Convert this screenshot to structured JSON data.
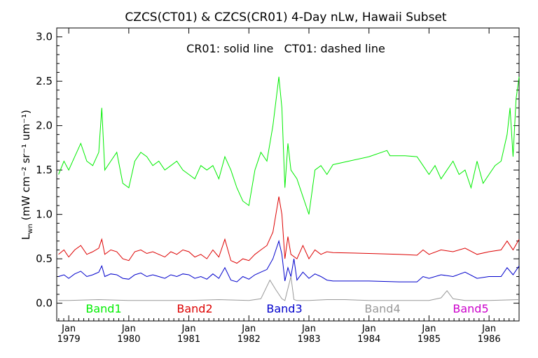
{
  "chart_data": {
    "type": "line",
    "title": "CZCS(CT01) & CZCS(CR01) 4-Day nLw, Hawaii Subset",
    "annotation": "CR01: solid line   CT01: dashed line",
    "ylabel_main": "L",
    "ylabel_sub": "wn",
    "ylabel_units": "(mW cm⁻² sr⁻¹ um⁻¹)",
    "xlabel": "",
    "xlim": [
      1978.8,
      1986.5
    ],
    "ylim": [
      -0.2,
      3.1
    ],
    "grid": false,
    "legend_placement": "bottom, inside plot",
    "x_ticks": [
      {
        "month": "Jan",
        "year": "1979",
        "x": 1979.0
      },
      {
        "month": "Jan",
        "year": "1980",
        "x": 1980.0
      },
      {
        "month": "Jan",
        "year": "1981",
        "x": 1981.0
      },
      {
        "month": "Jan",
        "year": "1982",
        "x": 1982.0
      },
      {
        "month": "Jan",
        "year": "1983",
        "x": 1983.0
      },
      {
        "month": "Jan",
        "year": "1984",
        "x": 1984.0
      },
      {
        "month": "Jan",
        "year": "1985",
        "x": 1985.0
      },
      {
        "month": "Jan",
        "year": "1986",
        "x": 1986.0
      }
    ],
    "y_ticks": [
      "0.0",
      "0.5",
      "1.0",
      "1.5",
      "2.0",
      "2.5",
      "3.0"
    ],
    "series": [
      {
        "name": "Band1",
        "color": "#00ee00",
        "x": [
          1978.83,
          1978.92,
          1979.0,
          1979.1,
          1979.2,
          1979.3,
          1979.4,
          1979.5,
          1979.55,
          1979.6,
          1979.7,
          1979.8,
          1979.9,
          1980.0,
          1980.1,
          1980.2,
          1980.3,
          1980.4,
          1980.5,
          1980.6,
          1980.7,
          1980.8,
          1980.9,
          1981.0,
          1981.1,
          1981.2,
          1981.3,
          1981.4,
          1981.5,
          1981.6,
          1981.7,
          1981.8,
          1981.9,
          1982.0,
          1982.1,
          1982.2,
          1982.3,
          1982.4,
          1982.5,
          1982.55,
          1982.6,
          1982.65,
          1982.7,
          1982.8,
          1982.9,
          1983.0,
          1983.1,
          1983.2,
          1983.3,
          1983.4,
          1984.0,
          1984.3,
          1984.35,
          1984.6,
          1984.8,
          1984.9,
          1985.0,
          1985.1,
          1985.2,
          1985.3,
          1985.4,
          1985.5,
          1985.6,
          1985.7,
          1985.8,
          1985.9,
          1986.0,
          1986.1,
          1986.2,
          1986.3,
          1986.35,
          1986.4,
          1986.45,
          1986.5
        ],
        "y": [
          1.45,
          1.6,
          1.5,
          1.65,
          1.8,
          1.6,
          1.55,
          1.7,
          2.2,
          1.5,
          1.6,
          1.7,
          1.35,
          1.3,
          1.6,
          1.7,
          1.65,
          1.55,
          1.6,
          1.5,
          1.55,
          1.6,
          1.5,
          1.45,
          1.4,
          1.55,
          1.5,
          1.55,
          1.4,
          1.65,
          1.5,
          1.3,
          1.15,
          1.1,
          1.5,
          1.7,
          1.6,
          2.0,
          2.55,
          2.2,
          1.3,
          1.8,
          1.5,
          1.4,
          1.2,
          1.0,
          1.5,
          1.55,
          1.45,
          1.56,
          1.65,
          1.72,
          1.66,
          1.66,
          1.65,
          1.55,
          1.45,
          1.55,
          1.4,
          1.5,
          1.6,
          1.45,
          1.5,
          1.3,
          1.6,
          1.35,
          1.45,
          1.55,
          1.6,
          1.9,
          2.2,
          1.65,
          2.3,
          2.55
        ]
      },
      {
        "name": "Band2",
        "color": "#dd0000",
        "x": [
          1978.83,
          1978.92,
          1979.0,
          1979.1,
          1979.2,
          1979.3,
          1979.4,
          1979.5,
          1979.55,
          1979.6,
          1979.7,
          1979.8,
          1979.9,
          1980.0,
          1980.1,
          1980.2,
          1980.3,
          1980.4,
          1980.5,
          1980.6,
          1980.7,
          1980.8,
          1980.9,
          1981.0,
          1981.1,
          1981.2,
          1981.3,
          1981.4,
          1981.5,
          1981.6,
          1981.7,
          1981.8,
          1981.9,
          1982.0,
          1982.1,
          1982.2,
          1982.3,
          1982.4,
          1982.5,
          1982.55,
          1982.6,
          1982.65,
          1982.7,
          1982.8,
          1982.9,
          1983.0,
          1983.1,
          1983.2,
          1983.3,
          1983.4,
          1984.0,
          1984.5,
          1984.8,
          1984.9,
          1985.0,
          1985.2,
          1985.4,
          1985.6,
          1985.8,
          1986.0,
          1986.2,
          1986.3,
          1986.4,
          1986.5
        ],
        "y": [
          0.55,
          0.6,
          0.52,
          0.6,
          0.65,
          0.55,
          0.58,
          0.62,
          0.72,
          0.55,
          0.6,
          0.58,
          0.5,
          0.48,
          0.58,
          0.6,
          0.56,
          0.58,
          0.55,
          0.52,
          0.58,
          0.55,
          0.6,
          0.58,
          0.52,
          0.55,
          0.5,
          0.6,
          0.52,
          0.72,
          0.48,
          0.45,
          0.5,
          0.48,
          0.55,
          0.6,
          0.65,
          0.8,
          1.2,
          1.0,
          0.5,
          0.75,
          0.55,
          0.5,
          0.65,
          0.5,
          0.6,
          0.55,
          0.58,
          0.57,
          0.56,
          0.55,
          0.54,
          0.6,
          0.55,
          0.6,
          0.58,
          0.62,
          0.55,
          0.58,
          0.6,
          0.7,
          0.6,
          0.72
        ]
      },
      {
        "name": "Band3",
        "color": "#0000cc",
        "x": [
          1978.83,
          1978.92,
          1979.0,
          1979.1,
          1979.2,
          1979.3,
          1979.4,
          1979.5,
          1979.55,
          1979.6,
          1979.7,
          1979.8,
          1979.9,
          1980.0,
          1980.1,
          1980.2,
          1980.3,
          1980.4,
          1980.5,
          1980.6,
          1980.7,
          1980.8,
          1980.9,
          1981.0,
          1981.1,
          1981.2,
          1981.3,
          1981.4,
          1981.5,
          1981.6,
          1981.7,
          1981.8,
          1981.9,
          1982.0,
          1982.1,
          1982.2,
          1982.3,
          1982.4,
          1982.5,
          1982.55,
          1982.6,
          1982.65,
          1982.7,
          1982.75,
          1982.8,
          1982.9,
          1983.0,
          1983.1,
          1983.2,
          1983.3,
          1983.4,
          1984.0,
          1984.5,
          1984.8,
          1984.9,
          1985.0,
          1985.2,
          1985.4,
          1985.6,
          1985.8,
          1986.0,
          1986.2,
          1986.3,
          1986.4,
          1986.5
        ],
        "y": [
          0.3,
          0.32,
          0.28,
          0.33,
          0.36,
          0.3,
          0.32,
          0.35,
          0.42,
          0.3,
          0.33,
          0.32,
          0.28,
          0.27,
          0.32,
          0.34,
          0.3,
          0.32,
          0.3,
          0.28,
          0.32,
          0.3,
          0.33,
          0.32,
          0.28,
          0.3,
          0.27,
          0.33,
          0.28,
          0.4,
          0.26,
          0.24,
          0.3,
          0.27,
          0.32,
          0.35,
          0.38,
          0.5,
          0.7,
          0.55,
          0.25,
          0.4,
          0.3,
          0.5,
          0.26,
          0.35,
          0.28,
          0.33,
          0.3,
          0.26,
          0.25,
          0.25,
          0.24,
          0.24,
          0.3,
          0.28,
          0.32,
          0.3,
          0.35,
          0.28,
          0.3,
          0.3,
          0.4,
          0.32,
          0.42
        ]
      },
      {
        "name": "Band4",
        "color": "#999999",
        "x": [
          1978.83,
          1979.0,
          1979.5,
          1980.0,
          1980.5,
          1981.0,
          1981.5,
          1982.0,
          1982.2,
          1982.35,
          1982.45,
          1982.55,
          1982.6,
          1982.7,
          1982.75,
          1982.8,
          1983.0,
          1983.3,
          1983.6,
          1984.0,
          1984.5,
          1985.0,
          1985.2,
          1985.3,
          1985.4,
          1985.6,
          1986.0,
          1986.5
        ],
        "y": [
          0.03,
          0.03,
          0.04,
          0.03,
          0.03,
          0.03,
          0.04,
          0.03,
          0.05,
          0.26,
          0.15,
          0.05,
          0.03,
          0.3,
          0.04,
          0.03,
          0.03,
          0.04,
          0.04,
          0.03,
          0.03,
          0.03,
          0.06,
          0.14,
          0.05,
          0.03,
          0.03,
          0.04
        ]
      },
      {
        "name": "Band5",
        "color": "#cc00cc",
        "x": [],
        "y": []
      }
    ]
  }
}
